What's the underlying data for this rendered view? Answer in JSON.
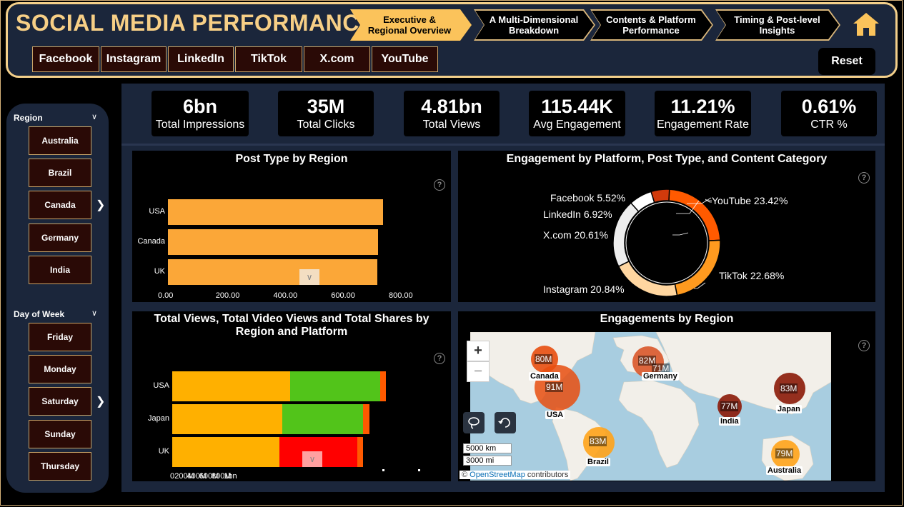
{
  "app": {
    "title": "SOCIAL MEDIA PERFORMANCE"
  },
  "nav": {
    "pages": [
      {
        "label": "Executive &\nRegional Overview",
        "active": true
      },
      {
        "label": "A Multi-Dimensional\nBreakdown",
        "active": false
      },
      {
        "label": "Contents & Platform\nPerformance",
        "active": false
      },
      {
        "label": "Timing & Post-level\nInsights",
        "active": false
      }
    ],
    "home_icon": "home-icon"
  },
  "platforms": [
    "Facebook",
    "Instagram",
    "LinkedIn",
    "TikTok",
    "X.com",
    "YouTube"
  ],
  "reset_label": "Reset",
  "filters": {
    "region": {
      "title": "Region",
      "items": [
        "Australia",
        "Brazil",
        "Canada",
        "Germany",
        "India"
      ]
    },
    "day_of_week": {
      "title": "Day of Week",
      "items": [
        "Friday",
        "Monday",
        "Saturday",
        "Sunday",
        "Thursday"
      ]
    }
  },
  "kpis": [
    {
      "value": "6bn",
      "label": "Total Impressions"
    },
    {
      "value": "35M",
      "label": "Total Clicks"
    },
    {
      "value": "4.81bn",
      "label": "Total Views"
    },
    {
      "value": "115.44K",
      "label": "Avg Engagement"
    },
    {
      "value": "11.21%",
      "label": "Engagement Rate"
    },
    {
      "value": "0.61%",
      "label": "CTR %"
    }
  ],
  "colors": {
    "accent": "#fbc35b",
    "navy": "#1b263b",
    "gold_border": "#f3cf8a",
    "bar_orange": "#fba738",
    "seg_yellow": "#ffb000",
    "seg_green": "#52c41a",
    "seg_red": "#ff0000",
    "seg_orangered": "#ff5a00"
  },
  "chart_data": [
    {
      "type": "bar",
      "title": "Post Type by Region",
      "orientation": "horizontal",
      "categories": [
        "USA",
        "Canada",
        "UK"
      ],
      "values": [
        745,
        728,
        726
      ],
      "xlim": [
        0,
        800
      ],
      "x_ticks": [
        "0.00",
        "200.00",
        "400.00",
        "600.00",
        "800.00"
      ]
    },
    {
      "type": "pie",
      "title": "Engagement by Platform, Post Type, and Content Category",
      "donut": true,
      "slices": [
        {
          "label": "YouTube 23.42%",
          "value": 23.42,
          "color": "#ff5a00"
        },
        {
          "label": "TikTok 22.68%",
          "value": 22.68,
          "color": "#ff9a1f"
        },
        {
          "label": "Instagram 20.84%",
          "value": 20.84,
          "color": "#ffd6a0"
        },
        {
          "label": "X.com 20.61%",
          "value": 20.61,
          "color": "#eeeeee"
        },
        {
          "label": "LinkedIn 6.92%",
          "value": 6.92,
          "color": "#ffffff"
        },
        {
          "label": "Facebook 5.52%",
          "value": 5.52,
          "color": "#d13a0c"
        }
      ]
    },
    {
      "type": "bar",
      "title": "Total Views, Total Video Views and Total Shares by Region and Platform",
      "orientation": "horizontal",
      "stacked": true,
      "categories": [
        "USA",
        "Japan",
        "UK"
      ],
      "series": [
        {
          "values": [
            670,
            625,
            610
          ],
          "color": "#ffb000"
        },
        {
          "values": [
            510,
            460,
            0
          ],
          "color": "#52c41a"
        },
        {
          "values": [
            0,
            0,
            440
          ],
          "color": "#ff0000"
        },
        {
          "values": [
            35,
            35,
            35
          ],
          "color": "#ff5a00"
        }
      ],
      "xlim": [
        0,
        1400
      ],
      "x_ticks": [
        "0",
        "200M",
        "400M",
        "600M",
        "800M",
        "1bn"
      ]
    }
  ],
  "map": {
    "title": "Engagements by Region",
    "attribution": "OpenStreetMap",
    "attribution_suffix": "contributors",
    "scale_km": "5000 km",
    "scale_mi": "3000 mi",
    "bubbles": [
      {
        "region": "Canada",
        "value": "80M",
        "color": "#e84e0f"
      },
      {
        "region": "USA",
        "value": "91M",
        "color": "#e84e0f"
      },
      {
        "region": "Germany",
        "value": "82M",
        "color": "#d9562a"
      },
      {
        "region": "UK",
        "value": "71M",
        "color": "#d9562a"
      },
      {
        "region": "India",
        "value": "77M",
        "color": "#8b1a08"
      },
      {
        "region": "Japan",
        "value": "83M",
        "color": "#8b1a08"
      },
      {
        "region": "Brazil",
        "value": "83M",
        "color": "#ffa31a"
      },
      {
        "region": "Australia",
        "value": "79M",
        "color": "#ffa31a"
      }
    ]
  },
  "icons": {
    "help": "?",
    "zoom_in": "+",
    "zoom_out": "−"
  }
}
